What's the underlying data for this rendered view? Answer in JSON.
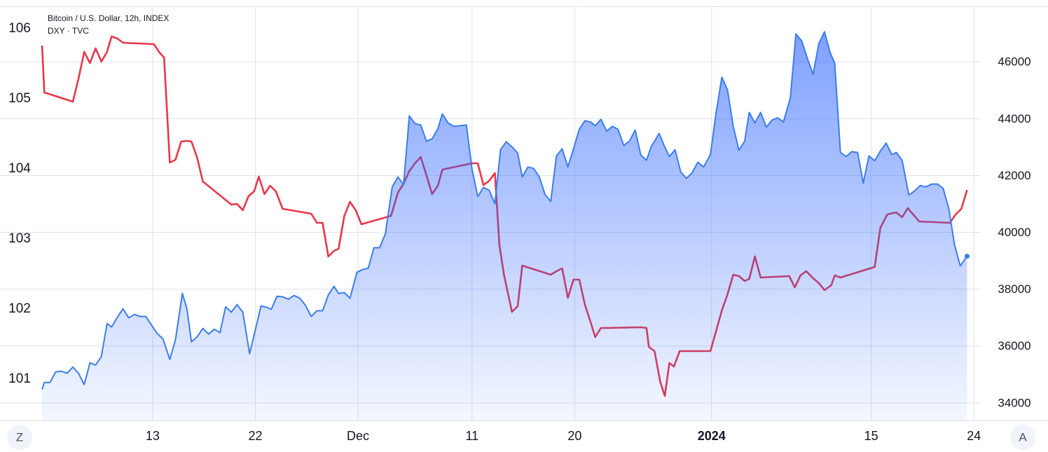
{
  "chart_data": {
    "type": "line",
    "series": [
      {
        "name": "Bitcoin / U.S. Dollar, 12h, INDEX",
        "color": "#3b7de8",
        "axis": "y2",
        "style": "area",
        "x": [
          3.3,
          3.5,
          4.0,
          4.5,
          5.0,
          5.5,
          6.0,
          6.5,
          7.0,
          7.5,
          8.0,
          8.5,
          9.0,
          9.4,
          9.9,
          10.4,
          10.9,
          11.4,
          11.9,
          12.4,
          12.9,
          13.4,
          13.9,
          14.5,
          15.0,
          15.6,
          16.0,
          16.4,
          16.9,
          17.4,
          17.9,
          18.4,
          18.9,
          19.4,
          19.9,
          20.4,
          20.9,
          21.5,
          22.0,
          22.5,
          23.0,
          23.4,
          23.9,
          24.4,
          24.9,
          25.4,
          25.9,
          26.4,
          26.9,
          27.4,
          27.9,
          28.4,
          28.9,
          29.3,
          29.8,
          30.3,
          30.9,
          31.4,
          31.9,
          32.4,
          32.9,
          33.4,
          34.0,
          34.5,
          35.0,
          35.5,
          36.0,
          36.5,
          37.0,
          37.5,
          38.0,
          38.4,
          38.9,
          39.4,
          39.9,
          40.5,
          41.0,
          41.5,
          42.0,
          42.5,
          43.0,
          43.5,
          44.0,
          44.5,
          45.0,
          45.4,
          45.9,
          46.4,
          46.9,
          47.4,
          47.9,
          48.4,
          48.9,
          49.4,
          49.9,
          50.4,
          50.9,
          51.4,
          51.8,
          52.3,
          52.8,
          53.3,
          53.8,
          54.3,
          54.8,
          55.3,
          55.8,
          56.3,
          56.7,
          57.4,
          57.8,
          58.3,
          58.8,
          59.3,
          59.8,
          60.3,
          60.8,
          61.3,
          61.9,
          62.4,
          62.9,
          63.4,
          63.9,
          64.4,
          64.9,
          65.3,
          65.8,
          66.3,
          66.8,
          67.3,
          67.8,
          68.3,
          68.9,
          69.4,
          69.9,
          70.4,
          70.9,
          71.4,
          71.9,
          72.4,
          72.8,
          73.3,
          73.8,
          74.3,
          74.8,
          75.3,
          75.8,
          76.3,
          76.8,
          77.3,
          77.8,
          78.2,
          78.7,
          79.3,
          79.8,
          80.3,
          80.8,
          81.3,
          81.8,
          82.3,
          82.8,
          83.3,
          83.8,
          84.4
        ],
        "values": [
          34470,
          34720,
          34720,
          35090,
          35110,
          35040,
          35260,
          35040,
          34640,
          35410,
          35330,
          35630,
          36790,
          36670,
          37010,
          37310,
          36990,
          37110,
          37040,
          37040,
          36740,
          36440,
          36250,
          35530,
          36220,
          37850,
          37310,
          36150,
          36320,
          36620,
          36420,
          36590,
          36470,
          37380,
          37190,
          37460,
          37190,
          35730,
          36570,
          37410,
          37360,
          37290,
          37750,
          37730,
          37650,
          37780,
          37680,
          37430,
          37040,
          37240,
          37240,
          37800,
          38100,
          37850,
          37880,
          37680,
          38590,
          38690,
          38740,
          39460,
          39460,
          39950,
          41600,
          41950,
          41680,
          44100,
          43830,
          43780,
          43210,
          43290,
          43650,
          44170,
          43850,
          43730,
          43750,
          43780,
          42220,
          41260,
          41580,
          41480,
          41010,
          42910,
          43190,
          43010,
          42790,
          41950,
          42300,
          42250,
          41950,
          41330,
          41090,
          42690,
          42940,
          42300,
          42940,
          43630,
          43930,
          43880,
          43750,
          43980,
          43560,
          43730,
          43630,
          43060,
          43210,
          43600,
          42720,
          42540,
          43010,
          43480,
          43090,
          42670,
          42910,
          42120,
          41900,
          42100,
          42470,
          42300,
          42740,
          44220,
          45460,
          45010,
          43730,
          42890,
          43210,
          44220,
          43850,
          44220,
          43700,
          43950,
          44030,
          43880,
          44720,
          46980,
          46740,
          46120,
          45560,
          46640,
          47060,
          46320,
          45950,
          42810,
          42670,
          42840,
          42810,
          41730,
          42690,
          42520,
          42860,
          43140,
          42740,
          42810,
          42540,
          41310,
          41460,
          41650,
          41600,
          41700,
          41700,
          41550,
          40840,
          39560,
          38820,
          39160
        ]
      },
      {
        "name": "DXY · TVC",
        "color": "#e8364a",
        "axis": "y",
        "style": "line",
        "x": [
          3.3,
          3.5,
          6.0,
          6.5,
          7.0,
          7.5,
          8.0,
          8.5,
          9.0,
          9.4,
          9.9,
          10.4,
          13.1,
          13.6,
          14.0,
          14.5,
          15.0,
          15.5,
          16.0,
          16.4,
          16.9,
          17.4,
          19.9,
          20.4,
          20.9,
          21.4,
          21.9,
          22.3,
          22.8,
          23.3,
          23.8,
          24.4,
          26.9,
          27.4,
          27.9,
          28.4,
          28.9,
          29.3,
          29.8,
          30.3,
          30.8,
          31.3,
          33.9,
          34.5,
          35.0,
          35.5,
          36.0,
          36.5,
          37.0,
          37.5,
          38.0,
          38.4,
          41.0,
          41.5,
          42.0,
          42.5,
          43.0,
          43.4,
          43.8,
          44.5,
          45.0,
          45.4,
          47.9,
          48.4,
          48.9,
          49.4,
          49.9,
          50.4,
          50.9,
          51.4,
          51.8,
          52.3,
          52.8,
          55.8,
          56.3,
          56.5,
          57.0,
          57.5,
          57.9,
          58.3,
          58.7,
          59.2,
          61.9,
          62.4,
          62.9,
          63.4,
          63.9,
          64.4,
          64.9,
          65.3,
          65.8,
          66.3,
          68.8,
          69.3,
          69.8,
          70.3,
          70.9,
          71.4,
          71.9,
          72.5,
          72.8,
          73.3,
          76.3,
          76.8,
          77.4,
          78.2,
          78.7,
          79.2,
          80.2,
          82.9,
          83.4,
          83.9,
          84.4
        ],
        "values": [
          105.75,
          105.08,
          104.95,
          105.28,
          105.66,
          105.5,
          105.71,
          105.52,
          105.66,
          105.88,
          105.85,
          105.79,
          105.77,
          105.65,
          105.58,
          104.08,
          104.12,
          104.38,
          104.39,
          104.38,
          104.15,
          103.81,
          103.48,
          103.49,
          103.4,
          103.6,
          103.67,
          103.88,
          103.63,
          103.75,
          103.67,
          103.42,
          103.35,
          103.22,
          103.22,
          102.74,
          102.82,
          102.85,
          103.32,
          103.52,
          103.4,
          103.2,
          103.32,
          103.65,
          103.78,
          103.96,
          104.07,
          104.16,
          103.9,
          103.63,
          103.75,
          103.98,
          104.07,
          104.07,
          103.76,
          103.82,
          103.93,
          102.9,
          102.48,
          101.95,
          102.03,
          102.61,
          102.48,
          102.53,
          102.57,
          102.15,
          102.41,
          102.41,
          102.05,
          101.8,
          101.59,
          101.72,
          101.72,
          101.73,
          101.72,
          101.45,
          101.39,
          100.95,
          100.75,
          101.22,
          101.17,
          101.39,
          101.39,
          101.68,
          101.97,
          102.2,
          102.48,
          102.46,
          102.39,
          102.42,
          102.74,
          102.44,
          102.46,
          102.3,
          102.47,
          102.53,
          102.43,
          102.36,
          102.26,
          102.33,
          102.47,
          102.44,
          102.59,
          103.15,
          103.34,
          103.37,
          103.3,
          103.43,
          103.24,
          103.22,
          103.34,
          103.42,
          103.69
        ]
      }
    ],
    "xlim": [
      3.3,
      85.6
    ],
    "xticks": [
      13,
      22,
      {
        "value": 31,
        "label": "Dec"
      },
      {
        "value": 41,
        "label": "11"
      },
      {
        "value": 50,
        "label": "20"
      },
      {
        "value": 62,
        "label": "2024"
      },
      {
        "value": 76,
        "label": "15"
      },
      {
        "value": 85,
        "label": "24"
      }
    ],
    "ylim": [
      100.4,
      106.3
    ],
    "yticks": [
      101,
      102,
      103,
      104,
      105,
      106
    ],
    "y2lim": [
      33380,
      47930
    ],
    "y2ticks": [
      34000,
      36000,
      38000,
      40000,
      42000,
      44000,
      46000
    ],
    "grid": true
  },
  "scale_buttons": {
    "left": "Z",
    "right": "A"
  }
}
